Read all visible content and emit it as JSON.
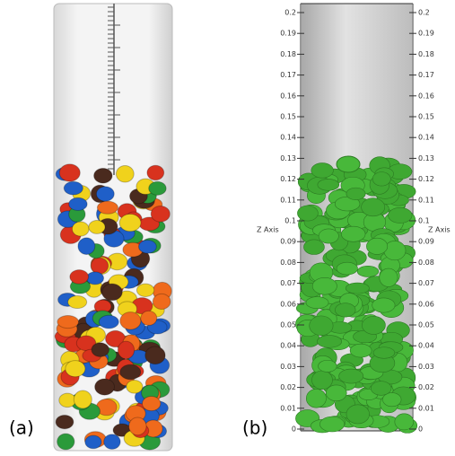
{
  "panel_a": {
    "label": "(a)"
  },
  "panel_b": {
    "label": "(b)",
    "axis_label": "Z Axis",
    "ticks": [
      0,
      0.01,
      0.02,
      0.03,
      0.04,
      0.05,
      0.06,
      0.07,
      0.08,
      0.09,
      0.1,
      0.11,
      0.12,
      0.13,
      0.14,
      0.15,
      0.16,
      0.17,
      0.18,
      0.19,
      0.2
    ]
  }
}
